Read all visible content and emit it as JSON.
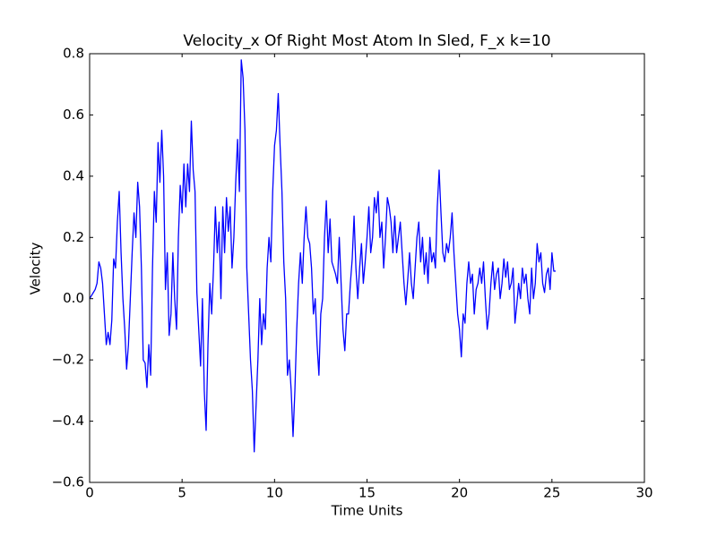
{
  "chart_data": {
    "type": "line",
    "title": "Velocity_x Of Right Most Atom In Sled, F_x k=10",
    "xlabel": "Time Units",
    "ylabel": "Velocity",
    "color": "#0000ff",
    "grid": false,
    "xlim": [
      0,
      30
    ],
    "xticks": [
      0,
      5,
      10,
      15,
      20,
      25,
      30
    ],
    "ylim": [
      -0.6,
      0.8
    ],
    "yticks": [
      {
        "value": -0.6,
        "label": "−0.6"
      },
      {
        "value": -0.4,
        "label": "−0.4"
      },
      {
        "value": -0.2,
        "label": "−0.2"
      },
      {
        "value": 0,
        "label": "0.0"
      },
      0.2,
      0.4,
      0.6,
      0.8
    ],
    "x": [
      0,
      0.1,
      0.2,
      0.3,
      0.4,
      0.5,
      0.6,
      0.7,
      0.8,
      0.9,
      1,
      1.1,
      1.2,
      1.3,
      1.4,
      1.5,
      1.6,
      1.7,
      1.8,
      1.9,
      2,
      2.1,
      2.2,
      2.3,
      2.4,
      2.5,
      2.6,
      2.7,
      2.8,
      2.9,
      3,
      3.1,
      3.2,
      3.3,
      3.4,
      3.5,
      3.6,
      3.7,
      3.8,
      3.9,
      4,
      4.1,
      4.2,
      4.3,
      4.4,
      4.5,
      4.6,
      4.7,
      4.8,
      4.9,
      5,
      5.1,
      5.2,
      5.3,
      5.4,
      5.5,
      5.6,
      5.7,
      5.8,
      5.9,
      6,
      6.1,
      6.2,
      6.3,
      6.4,
      6.5,
      6.6,
      6.7,
      6.8,
      6.9,
      7,
      7.1,
      7.2,
      7.3,
      7.4,
      7.5,
      7.6,
      7.7,
      7.8,
      7.9,
      8,
      8.1,
      8.2,
      8.3,
      8.4,
      8.5,
      8.6,
      8.7,
      8.8,
      8.9,
      9,
      9.1,
      9.2,
      9.3,
      9.4,
      9.5,
      9.6,
      9.7,
      9.8,
      9.9,
      10,
      10.1,
      10.2,
      10.3,
      10.4,
      10.5,
      10.6,
      10.7,
      10.8,
      10.9,
      11,
      11.1,
      11.2,
      11.3,
      11.4,
      11.5,
      11.6,
      11.7,
      11.8,
      11.9,
      12,
      12.1,
      12.2,
      12.3,
      12.4,
      12.5,
      12.6,
      12.7,
      12.8,
      12.9,
      13,
      13.1,
      13.2,
      13.3,
      13.4,
      13.5,
      13.6,
      13.7,
      13.8,
      13.9,
      14,
      14.1,
      14.2,
      14.3,
      14.4,
      14.5,
      14.6,
      14.7,
      14.8,
      14.9,
      15,
      15.1,
      15.2,
      15.3,
      15.4,
      15.5,
      15.6,
      15.7,
      15.8,
      15.9,
      16,
      16.1,
      16.2,
      16.3,
      16.4,
      16.5,
      16.6,
      16.7,
      16.8,
      16.9,
      17,
      17.1,
      17.2,
      17.3,
      17.4,
      17.5,
      17.6,
      17.7,
      17.8,
      17.9,
      18,
      18.1,
      18.2,
      18.3,
      18.4,
      18.5,
      18.6,
      18.7,
      18.8,
      18.9,
      19,
      19.1,
      19.2,
      19.3,
      19.4,
      19.5,
      19.6,
      19.7,
      19.8,
      19.9,
      20,
      20.1,
      20.2,
      20.3,
      20.4,
      20.5,
      20.6,
      20.7,
      20.8,
      20.9,
      21,
      21.1,
      21.2,
      21.3,
      21.4,
      21.5,
      21.6,
      21.7,
      21.8,
      21.9,
      22,
      22.1,
      22.2,
      22.3,
      22.4,
      22.5,
      22.6,
      22.7,
      22.8,
      22.9,
      23,
      23.1,
      23.2,
      23.3,
      23.4,
      23.5,
      23.6,
      23.7,
      23.8,
      23.9,
      24,
      24.1,
      24.2,
      24.3,
      24.4,
      24.5,
      24.6,
      24.7,
      24.8,
      24.9,
      25,
      25.1,
      25.2
    ],
    "values": [
      0,
      0.01,
      0.02,
      0.03,
      0.05,
      0.12,
      0.1,
      0.05,
      -0.05,
      -0.15,
      -0.11,
      -0.15,
      -0.07,
      0.13,
      0.1,
      0.25,
      0.35,
      0.15,
      0,
      -0.1,
      -0.23,
      -0.15,
      0,
      0.15,
      0.28,
      0.2,
      0.38,
      0.3,
      0.1,
      -0.2,
      -0.21,
      -0.29,
      -0.15,
      -0.25,
      0.1,
      0.35,
      0.25,
      0.51,
      0.38,
      0.55,
      0.4,
      0.03,
      0.15,
      -0.12,
      -0.05,
      0.15,
      0,
      -0.1,
      0.2,
      0.37,
      0.28,
      0.44,
      0.3,
      0.44,
      0.35,
      0.58,
      0.42,
      0.35,
      0.02,
      -0.1,
      -0.22,
      0,
      -0.3,
      -0.43,
      -0.15,
      0.05,
      -0.05,
      0.1,
      0.3,
      0.15,
      0.25,
      0,
      0.3,
      0.15,
      0.33,
      0.22,
      0.3,
      0.1,
      0.2,
      0.38,
      0.52,
      0.35,
      0.78,
      0.72,
      0.55,
      0.1,
      -0.05,
      -0.2,
      -0.3,
      -0.5,
      -0.35,
      -0.2,
      0,
      -0.15,
      -0.05,
      -0.1,
      0.1,
      0.2,
      0.12,
      0.35,
      0.5,
      0.55,
      0.67,
      0.5,
      0.35,
      0.12,
      0,
      -0.25,
      -0.2,
      -0.3,
      -0.45,
      -0.3,
      -0.1,
      0.05,
      0.15,
      0.05,
      0.2,
      0.3,
      0.2,
      0.18,
      0.1,
      -0.05,
      0,
      -0.15,
      -0.25,
      -0.05,
      0,
      0.2,
      0.32,
      0.15,
      0.26,
      0.12,
      0.1,
      0.08,
      0.05,
      0.2,
      0.05,
      -0.1,
      -0.17,
      -0.05,
      -0.05,
      0.05,
      0.13,
      0.27,
      0.1,
      0,
      0.1,
      0.18,
      0.05,
      0.12,
      0.2,
      0.3,
      0.15,
      0.2,
      0.33,
      0.28,
      0.35,
      0.2,
      0.25,
      0.1,
      0.2,
      0.33,
      0.3,
      0.25,
      0.15,
      0.27,
      0.15,
      0.2,
      0.25,
      0.15,
      0.05,
      -0.02,
      0.06,
      0.15,
      0.05,
      0,
      0.1,
      0.2,
      0.25,
      0.12,
      0.2,
      0.08,
      0.15,
      0.05,
      0.2,
      0.12,
      0.15,
      0.1,
      0.3,
      0.42,
      0.28,
      0.15,
      0.12,
      0.18,
      0.15,
      0.2,
      0.28,
      0.15,
      0.05,
      -0.05,
      -0.1,
      -0.19,
      -0.05,
      -0.08,
      0.05,
      0.12,
      0.05,
      0.08,
      -0.05,
      0.03,
      0.05,
      0.1,
      0.05,
      0.12,
      0,
      -0.1,
      -0.05,
      0.05,
      0.12,
      0.03,
      0.08,
      0.1,
      0,
      0.05,
      0.13,
      0.07,
      0.12,
      0.03,
      0.05,
      0.1,
      -0.08,
      -0.02,
      0.05,
      0,
      0.1,
      0.05,
      0.08,
      0,
      -0.05,
      0.1,
      0,
      0.05,
      0.18,
      0.12,
      0.15,
      0.05,
      0.02,
      0.08,
      0.1,
      0.03,
      0.15,
      0.09,
      0.09
    ]
  }
}
